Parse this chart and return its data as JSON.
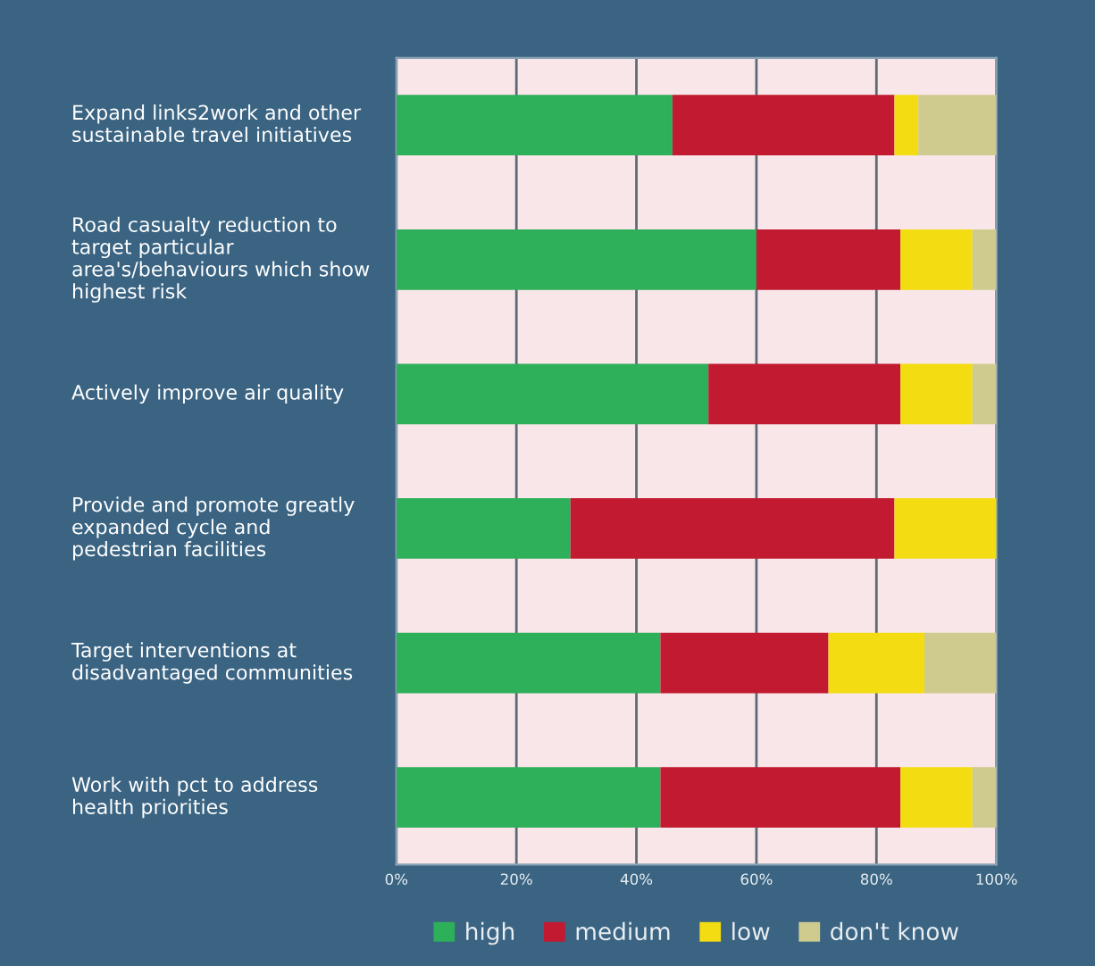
{
  "chart_data": {
    "type": "bar",
    "orientation": "horizontal",
    "stacked": true,
    "categories": [
      "Expand links2work and other sustainable travel initiatives",
      "Road casualty reduction to target particular area's/behaviours which show highest risk",
      "Actively improve air quality",
      "Provide and promote greatly expanded cycle and pedestrian facilities",
      "Target interventions at disadvantaged communities",
      "Work with pct to address health priorities"
    ],
    "series": [
      {
        "name": "high",
        "color": "#2eaf5a",
        "values": [
          46,
          60,
          52,
          29,
          44,
          44
        ]
      },
      {
        "name": "medium",
        "color": "#c21a30",
        "values": [
          37,
          24,
          32,
          54,
          28,
          40
        ]
      },
      {
        "name": "low",
        "color": "#f3dc12",
        "values": [
          4,
          12,
          12,
          17,
          16,
          12
        ]
      },
      {
        "name": "don't know",
        "color": "#cfcb8f",
        "values": [
          13,
          4,
          4,
          0,
          12,
          4
        ]
      }
    ],
    "xlim": [
      0,
      100
    ],
    "xticks": [
      {
        "value": 0,
        "label": "0%"
      },
      {
        "value": 20,
        "label": "20%"
      },
      {
        "value": 40,
        "label": "40%"
      },
      {
        "value": 60,
        "label": "60%"
      },
      {
        "value": 80,
        "label": "80%"
      },
      {
        "value": 100,
        "label": "100%"
      }
    ],
    "grid": "x",
    "legend": "bottom"
  }
}
